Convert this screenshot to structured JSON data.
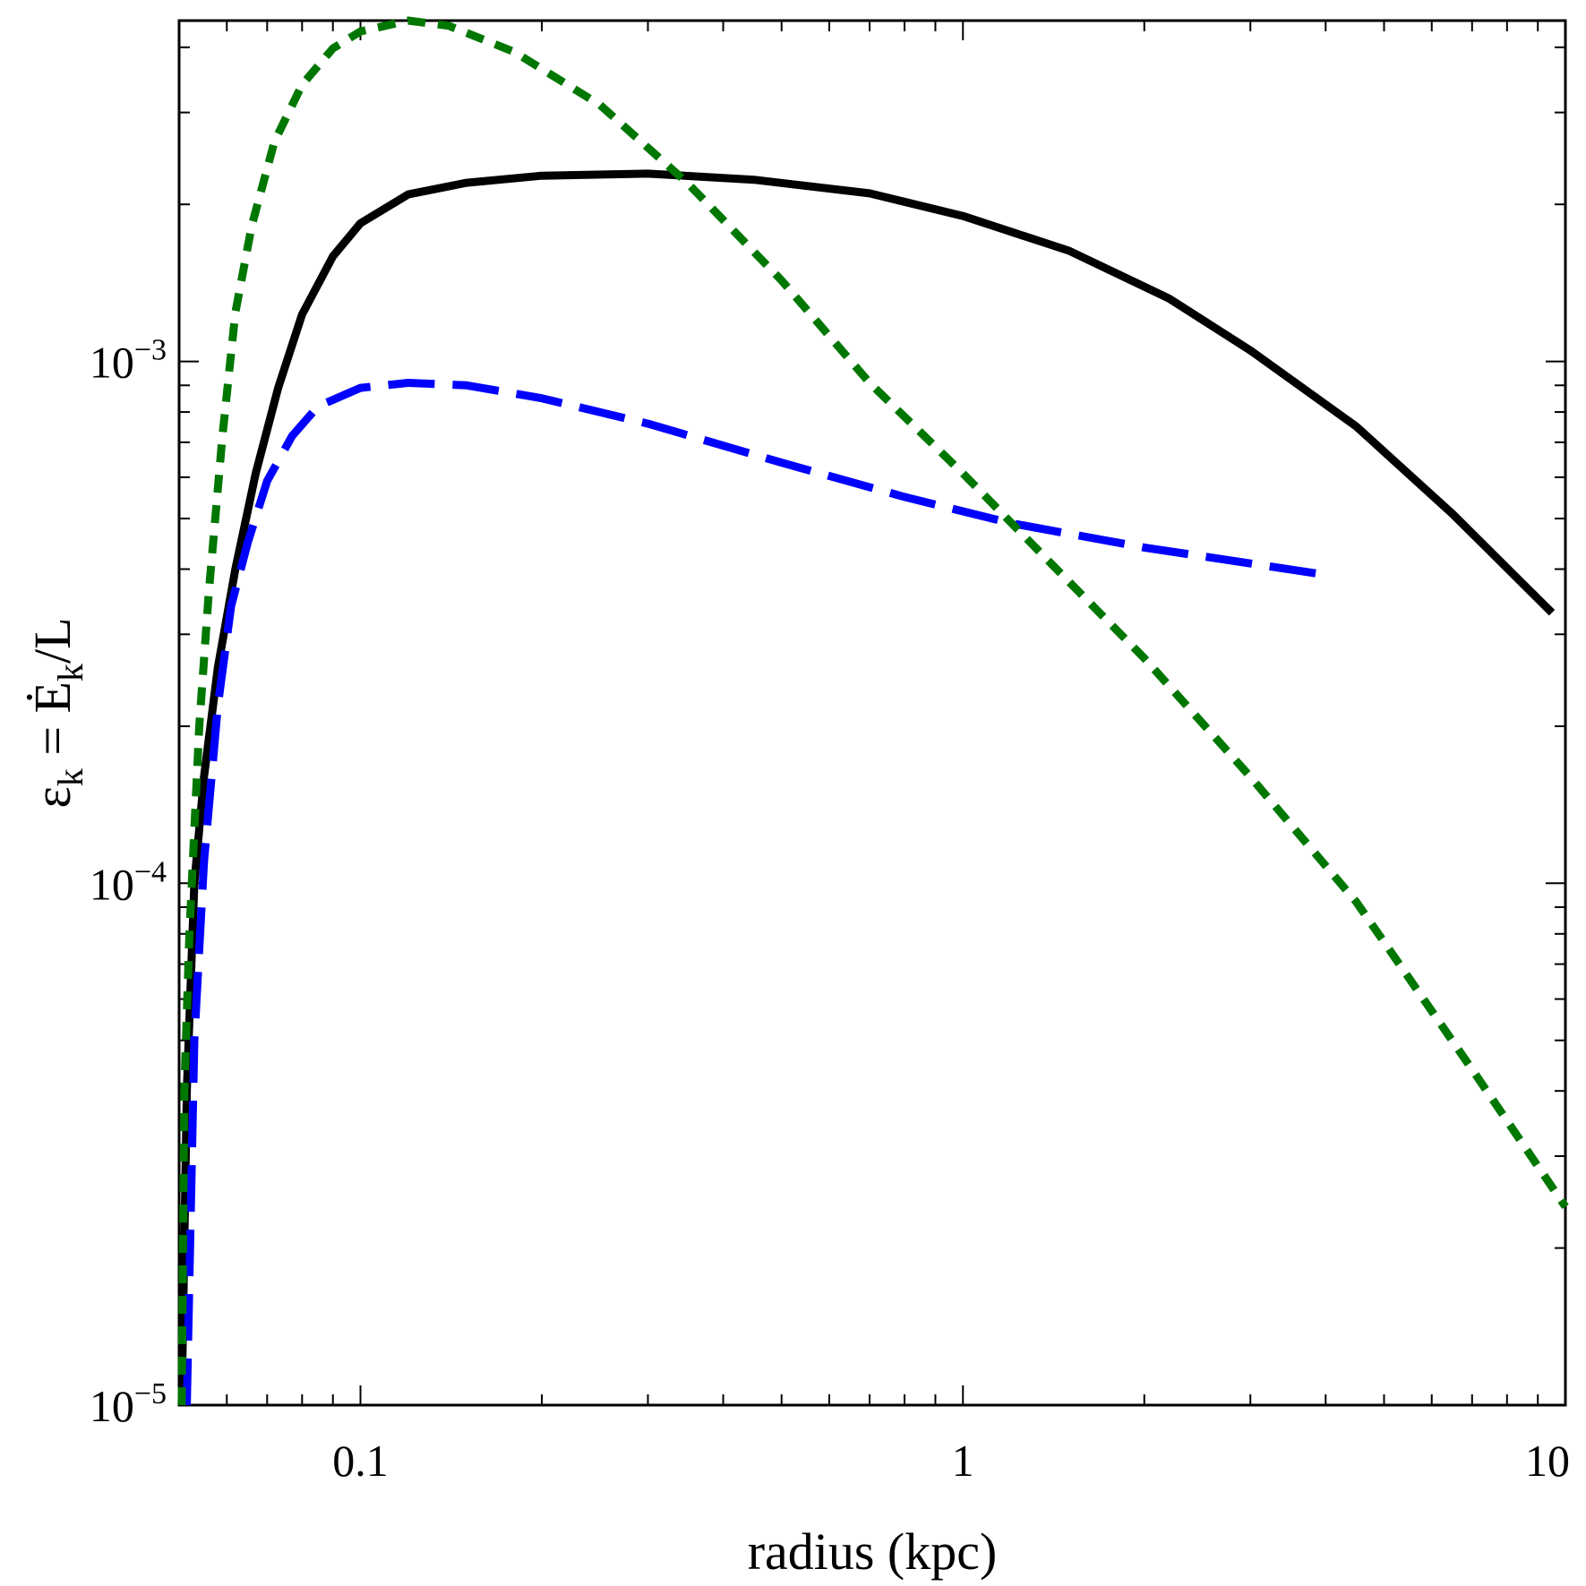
{
  "chart_data": {
    "type": "line",
    "title": "",
    "xlabel": "radius (kpc)",
    "ylabel": {
      "epsilon": "ε",
      "sub_k": "k",
      "equals": " = ",
      "edot": "Ė",
      "sub_k2": "k",
      "over": "/L"
    },
    "xscale": "log",
    "yscale": "log",
    "xlim": [
      0.05,
      10
    ],
    "ylim": [
      1e-05,
      0.0045
    ],
    "x_ticks": [
      {
        "value": 0.1,
        "label": "0.1"
      },
      {
        "value": 1,
        "label": "1"
      },
      {
        "value": 10,
        "label": "10"
      }
    ],
    "y_ticks": [
      {
        "value": 1e-05,
        "base": "10",
        "exp": "−5"
      },
      {
        "value": 0.0001,
        "base": "10",
        "exp": "−4"
      },
      {
        "value": 0.001,
        "base": "10",
        "exp": "−3"
      }
    ],
    "series": [
      {
        "name": "solid",
        "color": "#000000",
        "style": "solid",
        "points": [
          [
            0.0505,
            1e-05
          ],
          [
            0.0515,
            4e-05
          ],
          [
            0.053,
            0.0001
          ],
          [
            0.055,
            0.00016
          ],
          [
            0.058,
            0.00026
          ],
          [
            0.062,
            0.0004
          ],
          [
            0.067,
            0.00061
          ],
          [
            0.073,
            0.00089
          ],
          [
            0.08,
            0.00123
          ],
          [
            0.09,
            0.00159
          ],
          [
            0.1,
            0.00184
          ],
          [
            0.12,
            0.00209
          ],
          [
            0.15,
            0.0022
          ],
          [
            0.2,
            0.00227
          ],
          [
            0.3,
            0.00229
          ],
          [
            0.45,
            0.00223
          ],
          [
            0.7,
            0.0021
          ],
          [
            1.0,
            0.0019
          ],
          [
            1.5,
            0.00163
          ],
          [
            2.2,
            0.00132
          ],
          [
            3.0,
            0.00105
          ],
          [
            4.5,
            0.00075
          ],
          [
            6.5,
            0.00051
          ],
          [
            9.5,
            0.00033
          ]
        ]
      },
      {
        "name": "dashed",
        "color": "#0000ff",
        "style": "dashed",
        "points": [
          [
            0.0515,
            1e-05
          ],
          [
            0.053,
            5e-05
          ],
          [
            0.055,
            0.00011
          ],
          [
            0.058,
            0.00022
          ],
          [
            0.061,
            0.00034
          ],
          [
            0.065,
            0.00045
          ],
          [
            0.07,
            0.00059
          ],
          [
            0.077,
            0.00072
          ],
          [
            0.085,
            0.00082
          ],
          [
            0.1,
            0.00089
          ],
          [
            0.12,
            0.00091
          ],
          [
            0.15,
            0.0009
          ],
          [
            0.2,
            0.00085
          ],
          [
            0.3,
            0.00076
          ],
          [
            0.5,
            0.00064
          ],
          [
            0.8,
            0.00055
          ],
          [
            1.2,
            0.00049
          ],
          [
            2.0,
            0.00044
          ],
          [
            3.0,
            0.00041
          ],
          [
            4.0,
            0.00039
          ]
        ]
      },
      {
        "name": "dotted",
        "color": "#007700",
        "style": "dotted",
        "points": [
          [
            0.0505,
            1e-05
          ],
          [
            0.051,
            4e-05
          ],
          [
            0.052,
            8e-05
          ],
          [
            0.054,
            0.0002
          ],
          [
            0.056,
            0.00036
          ],
          [
            0.059,
            0.00072
          ],
          [
            0.062,
            0.00124
          ],
          [
            0.066,
            0.00182
          ],
          [
            0.072,
            0.00264
          ],
          [
            0.08,
            0.00339
          ],
          [
            0.09,
            0.00398
          ],
          [
            0.1,
            0.00429
          ],
          [
            0.12,
            0.0045
          ],
          [
            0.14,
            0.0044
          ],
          [
            0.18,
            0.00392
          ],
          [
            0.25,
            0.0031
          ],
          [
            0.35,
            0.00219
          ],
          [
            0.5,
            0.00143
          ],
          [
            0.7,
            0.00091
          ],
          [
            1.0,
            0.00061
          ],
          [
            1.4,
            0.00041
          ],
          [
            2.0,
            0.00027
          ],
          [
            3.0,
            0.00016
          ],
          [
            4.5,
            9.2e-05
          ],
          [
            7.0,
            4.4e-05
          ],
          [
            10,
            2.4e-05
          ]
        ]
      }
    ],
    "grid": false,
    "legend": "none"
  }
}
